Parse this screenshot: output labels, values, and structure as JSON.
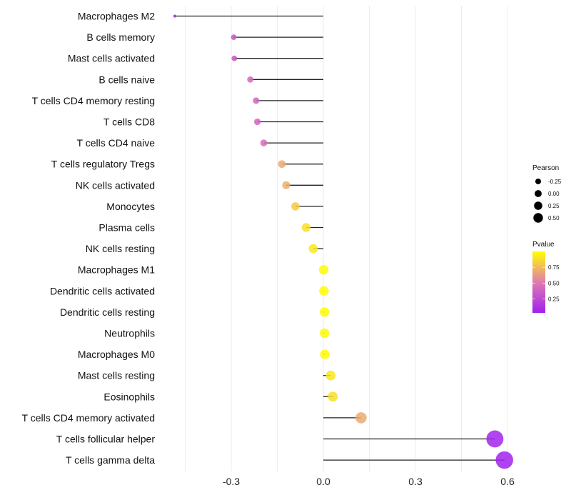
{
  "chart_data": {
    "type": "lollipop",
    "title": "",
    "xlabel": "",
    "ylabel": "",
    "xlim": [
      -0.49,
      0.64
    ],
    "xticks": [
      -0.3,
      0.0,
      0.3,
      0.6
    ],
    "xtick_labels": [
      "-0.3",
      "0.0",
      "0.3",
      "0.6"
    ],
    "grid": true,
    "categories": [
      "Macrophages M2",
      "B cells memory",
      "Mast cells activated",
      "B cells naive",
      "T cells CD4 memory resting",
      "T cells CD8",
      "T cells CD4 naive",
      "T cells regulatory  Tregs",
      "NK cells activated",
      "Monocytes",
      "Plasma cells",
      "NK cells resting",
      "Macrophages M1",
      "Dendritic cells activated",
      "Dendritic cells resting",
      "Neutrophils",
      "Macrophages M0",
      "Mast cells resting",
      "Eosinophils",
      "T cells CD4 memory activated",
      "T cells follicular helper",
      "T cells gamma delta"
    ],
    "series": [
      {
        "name": "Pearson",
        "values": [
          -0.484,
          -0.292,
          -0.29,
          -0.238,
          -0.219,
          -0.215,
          -0.194,
          -0.135,
          -0.121,
          -0.091,
          -0.056,
          -0.033,
          0.001,
          0.002,
          0.004,
          0.004,
          0.005,
          0.024,
          0.031,
          0.123,
          0.559,
          0.59
        ]
      },
      {
        "name": "Pvalue",
        "values": [
          0.01,
          0.3,
          0.3,
          0.4,
          0.38,
          0.38,
          0.42,
          0.68,
          0.7,
          0.8,
          0.88,
          0.92,
          0.99,
          0.99,
          0.98,
          0.98,
          0.98,
          0.91,
          0.88,
          0.68,
          0.02,
          0.01
        ]
      }
    ],
    "legend": {
      "position": "right",
      "size_title": "Pearson",
      "size_labels": [
        "-0.25",
        "0.00",
        "0.25",
        "0.50"
      ],
      "size_values": [
        -0.25,
        0.0,
        0.25,
        0.5
      ],
      "color_title": "Pvalue",
      "color_labels": [
        "0.75",
        "0.50",
        "0.25"
      ],
      "color_values": [
        0.75,
        0.5,
        0.25
      ],
      "color_range": [
        0.0,
        1.0
      ],
      "color_low": "#A020F0",
      "color_mid": "#E07BB0",
      "color_high": "#FFFF00"
    }
  }
}
